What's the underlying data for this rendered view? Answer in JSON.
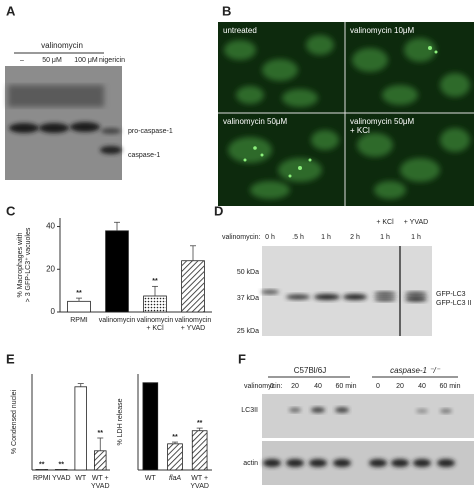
{
  "panels": {
    "a": {
      "label": "A",
      "treatment": "valinomycin",
      "lanes": [
        "–",
        "50 μM",
        "100 μM",
        "nigericin"
      ],
      "bands": [
        "pro-caspase-1",
        "caspase-1"
      ]
    },
    "b": {
      "label": "B",
      "images": [
        "untreated",
        "valinomycin 10μM",
        "valinomycin 50μM",
        "valinomycin 50μM\n+ KCl"
      ]
    },
    "c": {
      "label": "C"
    },
    "d": {
      "label": "D",
      "treatment": "valinomycin:",
      "lanes": [
        "0 h",
        ".5 h",
        "1 h",
        "2 h",
        "1 h",
        "1 h"
      ],
      "additions": [
        "+ KCl",
        "+ YVAD"
      ],
      "markers": [
        "50 kDa",
        "37 kDa",
        "25 kDa"
      ],
      "bands": [
        "GFP-LC3",
        "GFP-LC3 II"
      ]
    },
    "e": {
      "label": "E"
    },
    "f": {
      "label": "F",
      "strains": [
        "C57Bl/6J",
        "caspase-1 ⁻/⁻"
      ],
      "treatment": "valinomycin:",
      "times": [
        "0",
        "20",
        "40",
        "60 min",
        "0",
        "20",
        "40",
        "60 min"
      ],
      "rows": [
        "LC3II",
        "actin"
      ]
    }
  },
  "chart_data": [
    {
      "type": "bar",
      "y_label": "% Macrophages with\n> 3 GFP-LC3⁺ vacuoles",
      "categories": [
        "RPMI",
        "valinomycin",
        "valinomycin\n+ KCl",
        "valinomycin\n+ YVAD"
      ],
      "values": [
        5,
        38,
        7.5,
        24
      ],
      "errors": [
        1.5,
        4,
        4.5,
        7
      ],
      "markers": [
        "**",
        null,
        "**",
        null
      ],
      "fills": [
        "white",
        "black",
        "dots",
        "hatch"
      ],
      "ylim": [
        0,
        44
      ],
      "yticks": [
        0,
        20,
        40
      ]
    },
    {
      "type": "bar",
      "y_label": "% Condensed nuclei",
      "categories": [
        "RPMI",
        "YVAD",
        "WT",
        "WT +\nYVAD"
      ],
      "values": [
        0.5,
        0.5,
        78,
        18
      ],
      "errors": [
        0,
        0,
        3,
        12
      ],
      "markers": [
        "**",
        "**",
        null,
        "**"
      ],
      "fills": [
        "white",
        "white",
        "white",
        "hatch"
      ],
      "ylim": [
        0,
        90
      ]
    },
    {
      "type": "bar",
      "y_label": "% LDH release",
      "categories": [
        "WT",
        "flaA",
        "WT +\nYVAD"
      ],
      "values": [
        100,
        30,
        45
      ],
      "errors": [
        0,
        2,
        3
      ],
      "markers": [
        null,
        "**",
        "**"
      ],
      "fills": [
        "black",
        "hatch",
        "hatch"
      ],
      "ylim": [
        0,
        110
      ]
    }
  ]
}
